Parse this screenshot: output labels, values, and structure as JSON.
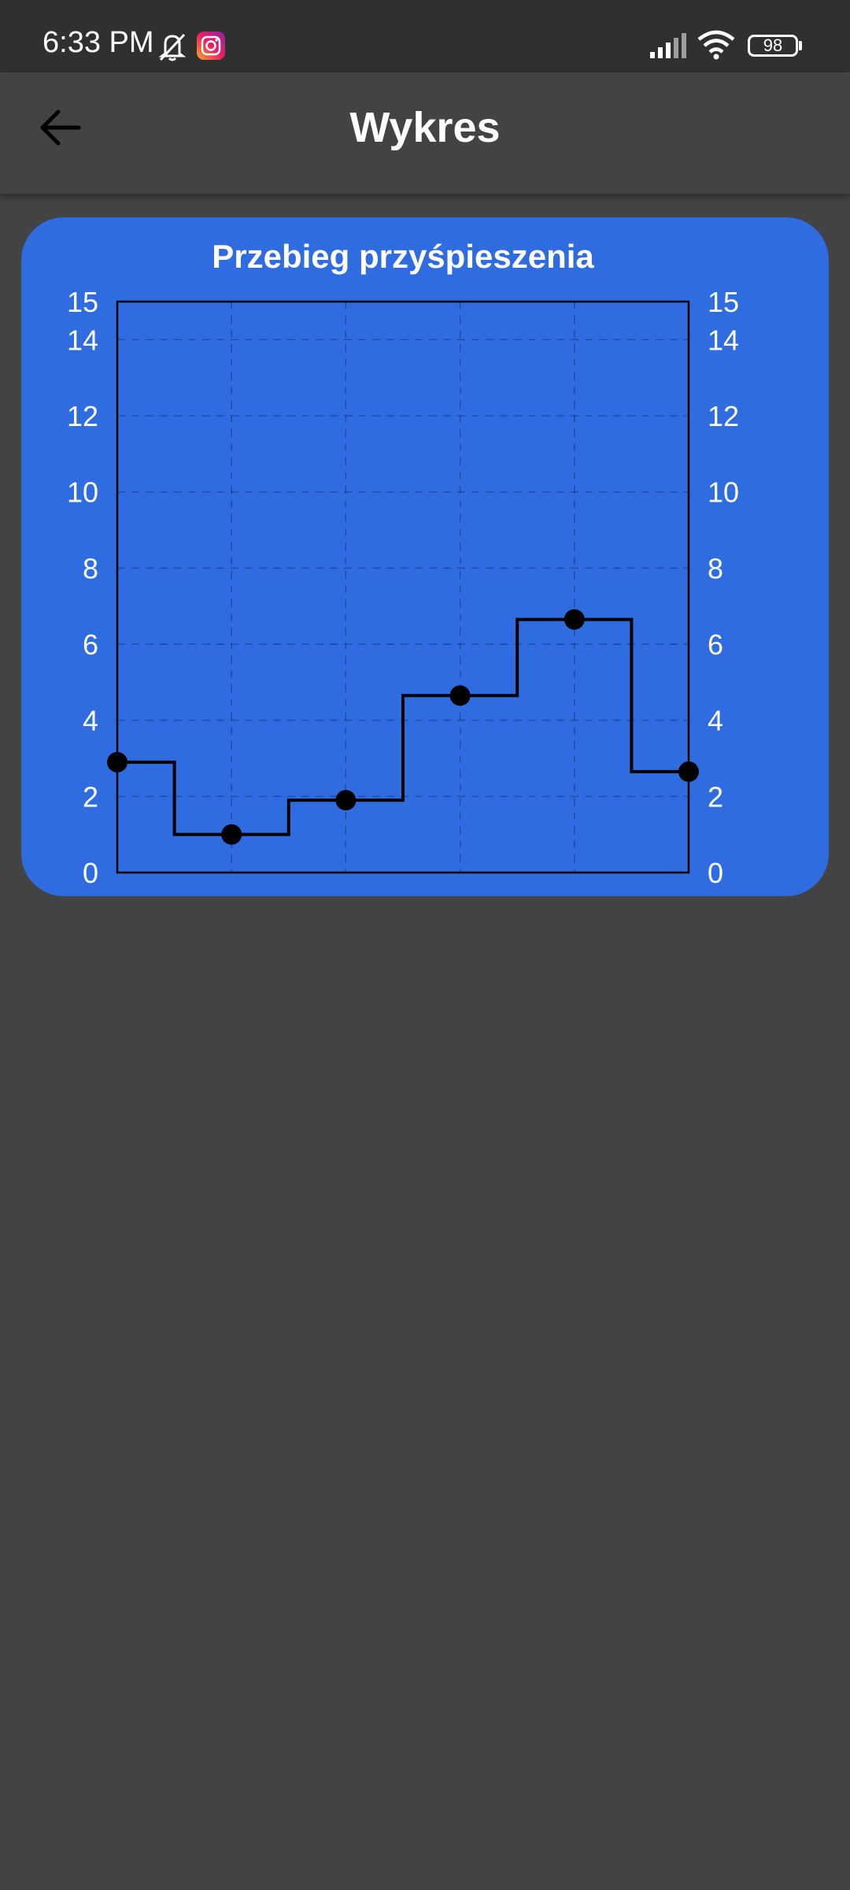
{
  "status_bar": {
    "time": "6:33 PM",
    "battery": "98",
    "icons": [
      "bell-off-icon",
      "instagram-icon",
      "signal-icon",
      "wifi-icon",
      "battery-icon"
    ]
  },
  "app_bar": {
    "title": "Wykres",
    "back_icon": "arrow-left-icon"
  },
  "colors": {
    "background": "#434343",
    "status_bar": "#303030",
    "card": "#2e6cdf",
    "line": "#000000",
    "text": "#ffffff"
  },
  "chart_data": {
    "type": "line",
    "title": "Przebieg przyśpieszenia",
    "step": true,
    "x": [
      0,
      1,
      2,
      3,
      4,
      5
    ],
    "y": [
      2.9,
      1.0,
      1.9,
      4.65,
      6.65,
      2.65
    ],
    "ylim": [
      0,
      15
    ],
    "yticks": [
      0,
      2,
      4,
      6,
      8,
      10,
      12,
      14,
      15
    ],
    "y_axis_both_sides": true,
    "grid": true,
    "xlabel": "",
    "ylabel": ""
  }
}
